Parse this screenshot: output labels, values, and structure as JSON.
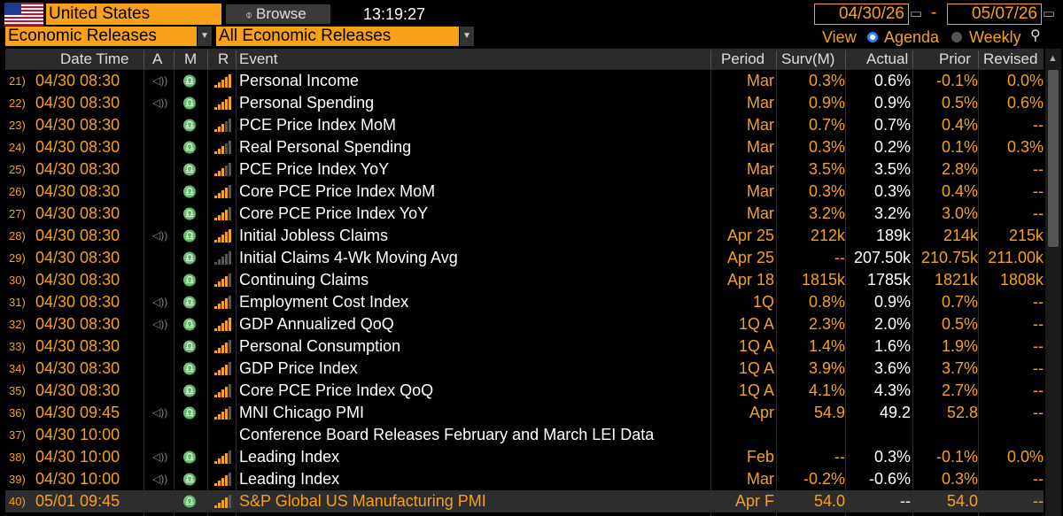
{
  "header": {
    "country": "United States",
    "browse_label": "Browse",
    "time": "13:19:27",
    "start_date": "04/30/26",
    "end_date": "05/07/26",
    "date_separator": "-"
  },
  "filters": {
    "category": "Economic Releases",
    "subcategory": "All Economic Releases",
    "view_label": "View",
    "agenda_label": "Agenda",
    "weekly_label": "Weekly"
  },
  "columns": {
    "date_time": "Date Time",
    "a": "A",
    "m": "M",
    "r": "R",
    "event": "Event",
    "period": "Period",
    "surv": "Surv(M)",
    "actual": "Actual",
    "prior": "Prior",
    "revised": "Revised"
  },
  "icons": {
    "flag": "us-flag-icon",
    "speaker": "speaker-icon",
    "bell": "bell-icon",
    "relevance": "relevance-bars-icon",
    "calendar": "calendar-icon",
    "zoom": "zoom-icon"
  },
  "colors": {
    "accent": "#f7a11a",
    "background": "#000000",
    "header": "#2b2b2b"
  },
  "rows": [
    {
      "num": "21)",
      "datetime": "04/30 08:30",
      "speaker": true,
      "bell": true,
      "relevance": 5,
      "event": "Personal Income",
      "period": "Mar",
      "surv": "0.3%",
      "actual": "0.6%",
      "prior": "-0.1%",
      "revised": "0.0%"
    },
    {
      "num": "22)",
      "datetime": "04/30 08:30",
      "speaker": true,
      "bell": true,
      "relevance": 5,
      "event": "Personal Spending",
      "period": "Mar",
      "surv": "0.9%",
      "actual": "0.9%",
      "prior": "0.5%",
      "revised": "0.6%"
    },
    {
      "num": "23)",
      "datetime": "04/30 08:30",
      "speaker": false,
      "bell": true,
      "relevance": 3,
      "event": "PCE Price Index MoM",
      "period": "Mar",
      "surv": "0.7%",
      "actual": "0.7%",
      "prior": "0.4%",
      "revised": "--"
    },
    {
      "num": "24)",
      "datetime": "04/30 08:30",
      "speaker": false,
      "bell": true,
      "relevance": 3,
      "event": "Real Personal Spending",
      "period": "Mar",
      "surv": "0.3%",
      "actual": "0.2%",
      "prior": "0.1%",
      "revised": "0.3%"
    },
    {
      "num": "25)",
      "datetime": "04/30 08:30",
      "speaker": false,
      "bell": true,
      "relevance": 3,
      "event": "PCE Price Index YoY",
      "period": "Mar",
      "surv": "3.5%",
      "actual": "3.5%",
      "prior": "2.8%",
      "revised": "--"
    },
    {
      "num": "26)",
      "datetime": "04/30 08:30",
      "speaker": false,
      "bell": true,
      "relevance": 4,
      "event": "Core PCE Price Index MoM",
      "period": "Mar",
      "surv": "0.3%",
      "actual": "0.3%",
      "prior": "0.4%",
      "revised": "--"
    },
    {
      "num": "27)",
      "datetime": "04/30 08:30",
      "speaker": false,
      "bell": true,
      "relevance": 4,
      "event": "Core PCE Price Index YoY",
      "period": "Mar",
      "surv": "3.2%",
      "actual": "3.2%",
      "prior": "3.0%",
      "revised": "--"
    },
    {
      "num": "28)",
      "datetime": "04/30 08:30",
      "speaker": true,
      "bell": true,
      "relevance": 5,
      "event": "Initial Jobless Claims",
      "period": "Apr 25",
      "surv": "212k",
      "actual": "189k",
      "prior": "214k",
      "revised": "215k"
    },
    {
      "num": "29)",
      "datetime": "04/30 08:30",
      "speaker": false,
      "bell": true,
      "relevance": 0,
      "event": "Initial Claims 4-Wk Moving Avg",
      "period": "Apr 25",
      "surv": "--",
      "actual": "207.50k",
      "prior": "210.75k",
      "revised": "211.00k"
    },
    {
      "num": "30)",
      "datetime": "04/30 08:30",
      "speaker": false,
      "bell": true,
      "relevance": 4,
      "event": "Continuing Claims",
      "period": "Apr 18",
      "surv": "1815k",
      "actual": "1785k",
      "prior": "1821k",
      "revised": "1808k"
    },
    {
      "num": "31)",
      "datetime": "04/30 08:30",
      "speaker": true,
      "bell": true,
      "relevance": 4,
      "event": "Employment Cost Index",
      "period": "1Q",
      "surv": "0.8%",
      "actual": "0.9%",
      "prior": "0.7%",
      "revised": "--"
    },
    {
      "num": "32)",
      "datetime": "04/30 08:30",
      "speaker": true,
      "bell": true,
      "relevance": 5,
      "event": "GDP Annualized QoQ",
      "period": "1Q A",
      "surv": "2.3%",
      "actual": "2.0%",
      "prior": "0.5%",
      "revised": "--"
    },
    {
      "num": "33)",
      "datetime": "04/30 08:30",
      "speaker": false,
      "bell": true,
      "relevance": 4,
      "event": "Personal Consumption",
      "period": "1Q A",
      "surv": "1.4%",
      "actual": "1.6%",
      "prior": "1.9%",
      "revised": "--"
    },
    {
      "num": "34)",
      "datetime": "04/30 08:30",
      "speaker": false,
      "bell": true,
      "relevance": 4,
      "event": "GDP Price Index",
      "period": "1Q A",
      "surv": "3.9%",
      "actual": "3.6%",
      "prior": "3.7%",
      "revised": "--"
    },
    {
      "num": "35)",
      "datetime": "04/30 08:30",
      "speaker": false,
      "bell": true,
      "relevance": 4,
      "event": "Core PCE Price Index QoQ",
      "period": "1Q A",
      "surv": "4.1%",
      "actual": "4.3%",
      "prior": "2.7%",
      "revised": "--"
    },
    {
      "num": "36)",
      "datetime": "04/30 09:45",
      "speaker": true,
      "bell": true,
      "relevance": 4,
      "event": "MNI Chicago PMI",
      "period": "Apr",
      "surv": "54.9",
      "actual": "49.2",
      "prior": "52.8",
      "revised": "--"
    },
    {
      "num": "37)",
      "datetime": "04/30 10:00",
      "speaker": false,
      "bell": false,
      "relevance": -1,
      "event": "Conference Board Releases February and March LEI Data",
      "period": "",
      "surv": "",
      "actual": "",
      "prior": "",
      "revised": ""
    },
    {
      "num": "38)",
      "datetime": "04/30 10:00",
      "speaker": true,
      "bell": true,
      "relevance": 4,
      "event": "Leading Index",
      "period": "Feb",
      "surv": "--",
      "actual": "0.3%",
      "prior": "-0.1%",
      "revised": "0.0%"
    },
    {
      "num": "39)",
      "datetime": "04/30 10:00",
      "speaker": true,
      "bell": true,
      "relevance": 4,
      "event": "Leading Index",
      "period": "Mar",
      "surv": "-0.2%",
      "actual": "-0.6%",
      "prior": "0.3%",
      "revised": "--"
    },
    {
      "num": "40)",
      "datetime": "05/01 09:45",
      "speaker": false,
      "bell": true,
      "relevance": 4,
      "event": "S&P Global US Manufacturing PMI",
      "period": "Apr F",
      "surv": "54.0",
      "actual": "--",
      "prior": "54.0",
      "revised": "--",
      "selected": true
    }
  ]
}
